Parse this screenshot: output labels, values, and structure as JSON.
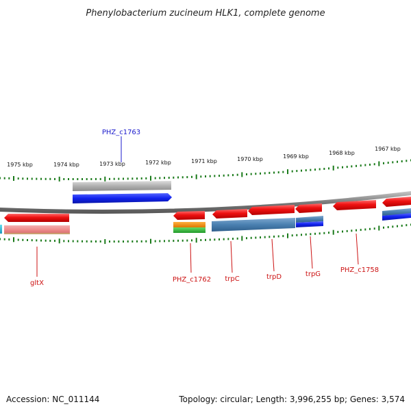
{
  "title": "Phenylobacterium zucineum HLK1, complete genome",
  "footer": {
    "accession": "Accession: NC_011144",
    "summary": "Topology: circular; Length: 3,996,255 bp; Genes: 3,574"
  },
  "scale": {
    "unit": "kbp",
    "labels": [
      "1975 kbp",
      "1974 kbp",
      "1973 kbp",
      "1972 kbp",
      "1971 kbp",
      "1970 kbp",
      "1969 kbp",
      "1968 kbp",
      "1967 kbp"
    ]
  },
  "gene_labels": [
    {
      "id": "PHZ_c1763",
      "text": "PHZ_c1763",
      "color": "#1a1acc"
    },
    {
      "id": "gltX",
      "text": "gltX",
      "color": "#cc1111"
    },
    {
      "id": "PHZ_c1762",
      "text": "PHZ_c1762",
      "color": "#cc1111"
    },
    {
      "id": "trpC",
      "text": "trpC",
      "color": "#cc1111"
    },
    {
      "id": "trpD",
      "text": "trpD",
      "color": "#cc1111"
    },
    {
      "id": "trpG",
      "text": "trpG",
      "color": "#cc1111"
    },
    {
      "id": "PHZ_c1758",
      "text": "PHZ_c1758",
      "color": "#cc1111"
    }
  ],
  "colors": {
    "backbone": "#8a8a8a",
    "tick": "#1a7a1a",
    "cds_red": "#ee1111",
    "rna_pink": "#ee8888",
    "blue": "#1122ee",
    "steel": "#4a80b0",
    "grey": "#b0b0b0",
    "orange": "#ee8800",
    "green": "#33bb33",
    "teal": "#22aacc"
  }
}
